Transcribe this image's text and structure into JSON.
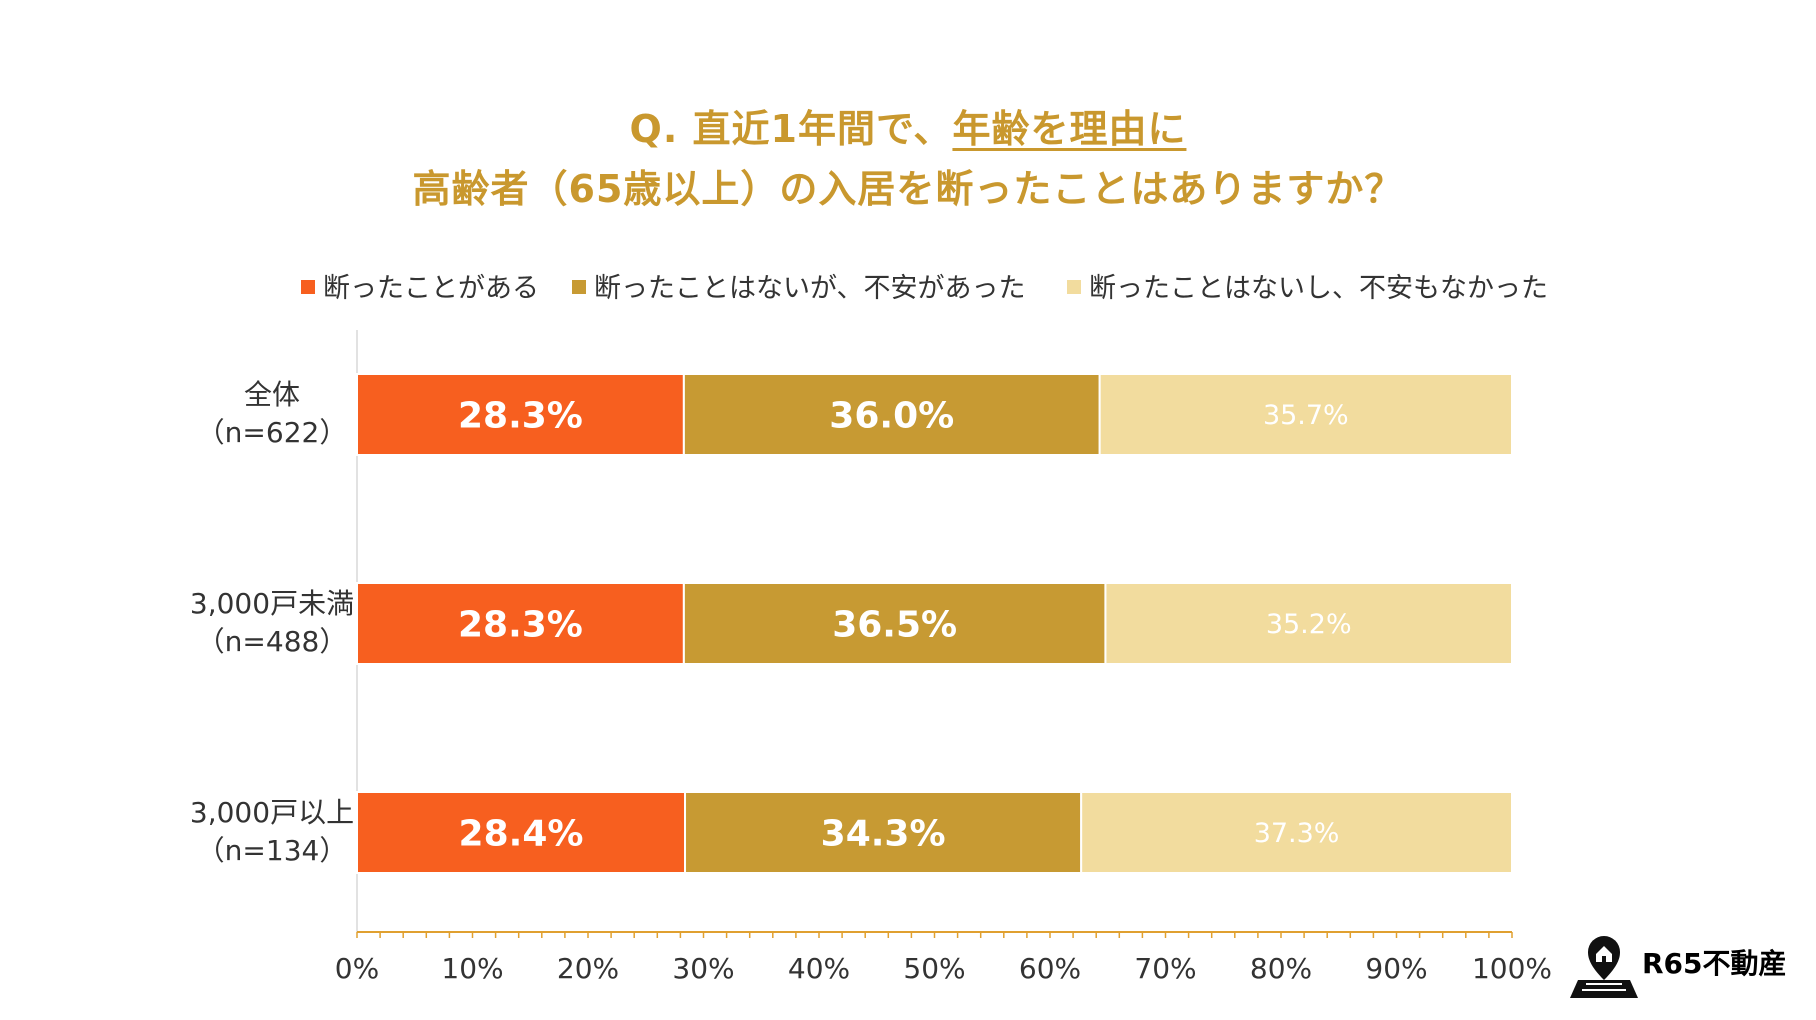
{
  "title": {
    "line1_prefix": "Q. 直近1年間で、",
    "line1_underlined": "年齢を理由に",
    "line2": "高齢者（65歳以上）の入居を断ったことはありますか？"
  },
  "brand": {
    "name": "R65不動産",
    "icon": "map-pin-house-icon"
  },
  "colors": {
    "refused": "#f75f1f",
    "worried": "#c79a33",
    "not_worried": "#f2dc9e",
    "title": "#c9982e",
    "axis": "#e0a030"
  },
  "chart_data": {
    "type": "bar",
    "orientation": "horizontal",
    "stacked": true,
    "title": "Q. 直近1年間で、年齢を理由に 高齢者（65歳以上）の入居を断ったことはありますか？",
    "categories": [
      "全体\n（n=622）",
      "3,000戸未満\n（n=488）",
      "3,000戸以上\n（n=134）"
    ],
    "category_lines": [
      [
        "全体",
        "（n=622）"
      ],
      [
        "3,000戸未満",
        "（n=488）"
      ],
      [
        "3,000戸以上",
        "（n=134）"
      ]
    ],
    "series": [
      {
        "name": "断ったことがある",
        "values": [
          28.3,
          28.3,
          28.4
        ],
        "labels": [
          "28.3%",
          "28.3%",
          "28.4%"
        ]
      },
      {
        "name": "断ったことはないが、不安があった",
        "values": [
          36.0,
          36.5,
          34.3
        ],
        "labels": [
          "36.0%",
          "36.5%",
          "34.3%"
        ]
      },
      {
        "name": "断ったことはないし、不安もなかった",
        "values": [
          35.7,
          35.2,
          37.3
        ],
        "labels": [
          "35.7%",
          "35.2%",
          "37.3%"
        ]
      }
    ],
    "xlim": [
      0,
      100
    ],
    "xticks": [
      "0%",
      "10%",
      "20%",
      "30%",
      "40%",
      "50%",
      "60%",
      "70%",
      "80%",
      "90%",
      "100%"
    ],
    "legend_position": "top",
    "grid": false
  }
}
